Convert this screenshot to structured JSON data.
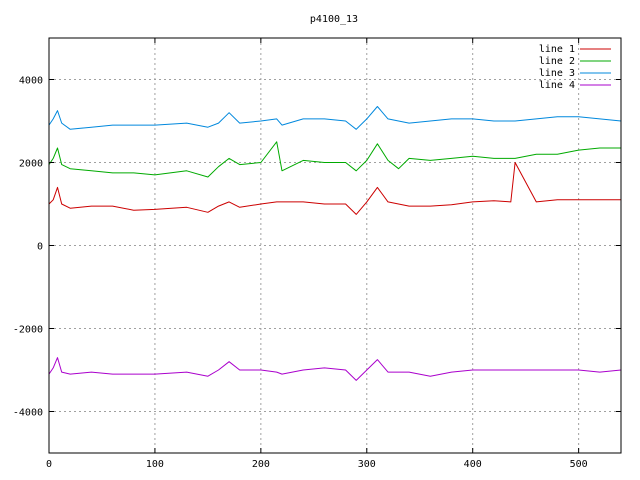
{
  "chart_data": {
    "type": "line",
    "title": "p4100_13",
    "xlabel": "",
    "ylabel": "",
    "xlim": [
      0,
      540
    ],
    "ylim": [
      -5000,
      5000
    ],
    "x_ticks": [
      0,
      100,
      200,
      300,
      400,
      500
    ],
    "y_ticks": [
      -4000,
      -2000,
      0,
      2000,
      4000
    ],
    "grid": true,
    "legend_position": "top-right",
    "series": [
      {
        "name": "line 1",
        "color": "#cc0000",
        "x": [
          0,
          4,
          8,
          12,
          20,
          40,
          60,
          80,
          100,
          130,
          150,
          160,
          170,
          180,
          200,
          215,
          220,
          240,
          260,
          280,
          290,
          300,
          310,
          320,
          340,
          360,
          380,
          400,
          420,
          436,
          440,
          460,
          480,
          500,
          520,
          540
        ],
        "y": [
          1000,
          1100,
          1400,
          1000,
          900,
          950,
          950,
          850,
          870,
          920,
          800,
          950,
          1050,
          920,
          1000,
          1050,
          1050,
          1050,
          1000,
          1000,
          750,
          1050,
          1400,
          1050,
          950,
          950,
          980,
          1050,
          1080,
          1050,
          2000,
          1050,
          1100,
          1100,
          1100,
          1100
        ]
      },
      {
        "name": "line 2",
        "color": "#00aa00",
        "x": [
          0,
          4,
          8,
          12,
          20,
          40,
          60,
          80,
          100,
          130,
          150,
          160,
          170,
          180,
          200,
          215,
          220,
          240,
          260,
          280,
          290,
          300,
          310,
          320,
          330,
          340,
          360,
          380,
          400,
          420,
          440,
          460,
          480,
          500,
          520,
          540
        ],
        "y": [
          1950,
          2100,
          2350,
          1950,
          1850,
          1800,
          1750,
          1750,
          1700,
          1800,
          1650,
          1900,
          2100,
          1950,
          2000,
          2500,
          1800,
          2050,
          2000,
          2000,
          1800,
          2050,
          2450,
          2050,
          1850,
          2100,
          2050,
          2100,
          2150,
          2100,
          2100,
          2200,
          2200,
          2300,
          2350,
          2350
        ]
      },
      {
        "name": "line 3",
        "color": "#0088dd",
        "x": [
          0,
          4,
          8,
          12,
          20,
          40,
          60,
          80,
          100,
          130,
          150,
          160,
          170,
          180,
          200,
          215,
          220,
          240,
          260,
          280,
          290,
          300,
          310,
          320,
          340,
          360,
          380,
          400,
          420,
          440,
          460,
          480,
          500,
          520,
          540
        ],
        "y": [
          2900,
          3050,
          3250,
          2950,
          2800,
          2850,
          2900,
          2900,
          2900,
          2950,
          2850,
          2950,
          3200,
          2950,
          3000,
          3050,
          2900,
          3050,
          3050,
          3000,
          2800,
          3050,
          3350,
          3050,
          2950,
          3000,
          3050,
          3050,
          3000,
          3000,
          3050,
          3100,
          3100,
          3050,
          3000
        ]
      },
      {
        "name": "line 4",
        "color": "#aa00cc",
        "x": [
          0,
          4,
          8,
          12,
          20,
          40,
          60,
          80,
          100,
          130,
          150,
          160,
          170,
          180,
          200,
          215,
          220,
          240,
          260,
          280,
          290,
          300,
          310,
          320,
          340,
          360,
          380,
          400,
          420,
          440,
          460,
          480,
          500,
          520,
          540
        ],
        "y": [
          -3100,
          -2950,
          -2700,
          -3050,
          -3100,
          -3050,
          -3100,
          -3100,
          -3100,
          -3050,
          -3150,
          -3000,
          -2800,
          -3000,
          -3000,
          -3050,
          -3100,
          -3000,
          -2950,
          -3000,
          -3250,
          -3000,
          -2750,
          -3050,
          -3050,
          -3150,
          -3050,
          -3000,
          -3000,
          -3000,
          -3000,
          -3000,
          -3000,
          -3050,
          -3000
        ]
      }
    ]
  }
}
